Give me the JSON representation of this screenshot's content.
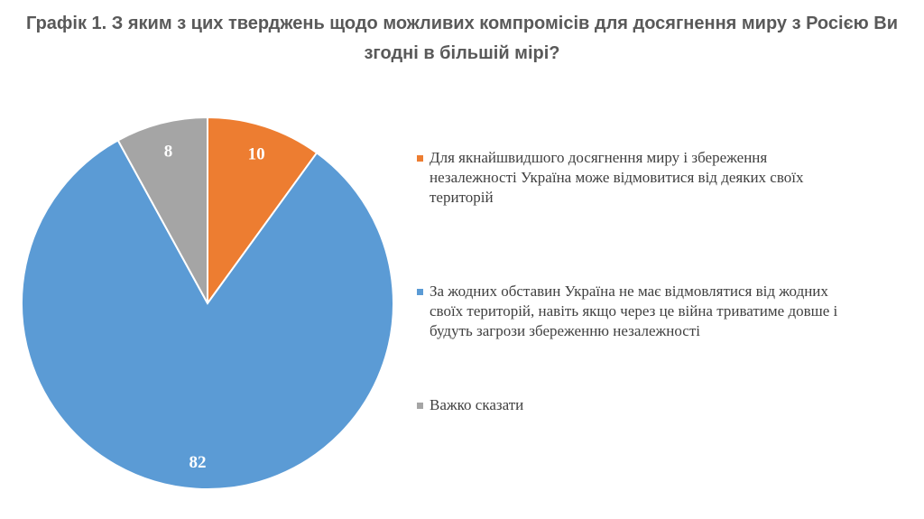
{
  "chart_data": {
    "type": "pie",
    "title": "Графік 1. З яким з цих тверджень щодо можливих компромісів для досягнення миру з Росією Ви згодні в більшій мірі?",
    "slices": [
      {
        "label": "Для якнайшвидшого досягнення миру і збереження незалежності Україна може відмовитися від деяких своїх територій",
        "value": 10,
        "display": "10",
        "color": "#ED7D31"
      },
      {
        "label": "За жодних обставин Україна не має відмовлятися від жодних своїх територій, навіть якщо через це війна триватиме довше і будуть загрози збереженню незалежності",
        "value": 82,
        "display": "82",
        "color": "#5B9BD5"
      },
      {
        "label": "Важко сказати",
        "value": 8,
        "display": "8",
        "color": "#A5A5A5"
      }
    ],
    "legend_position": "right"
  }
}
